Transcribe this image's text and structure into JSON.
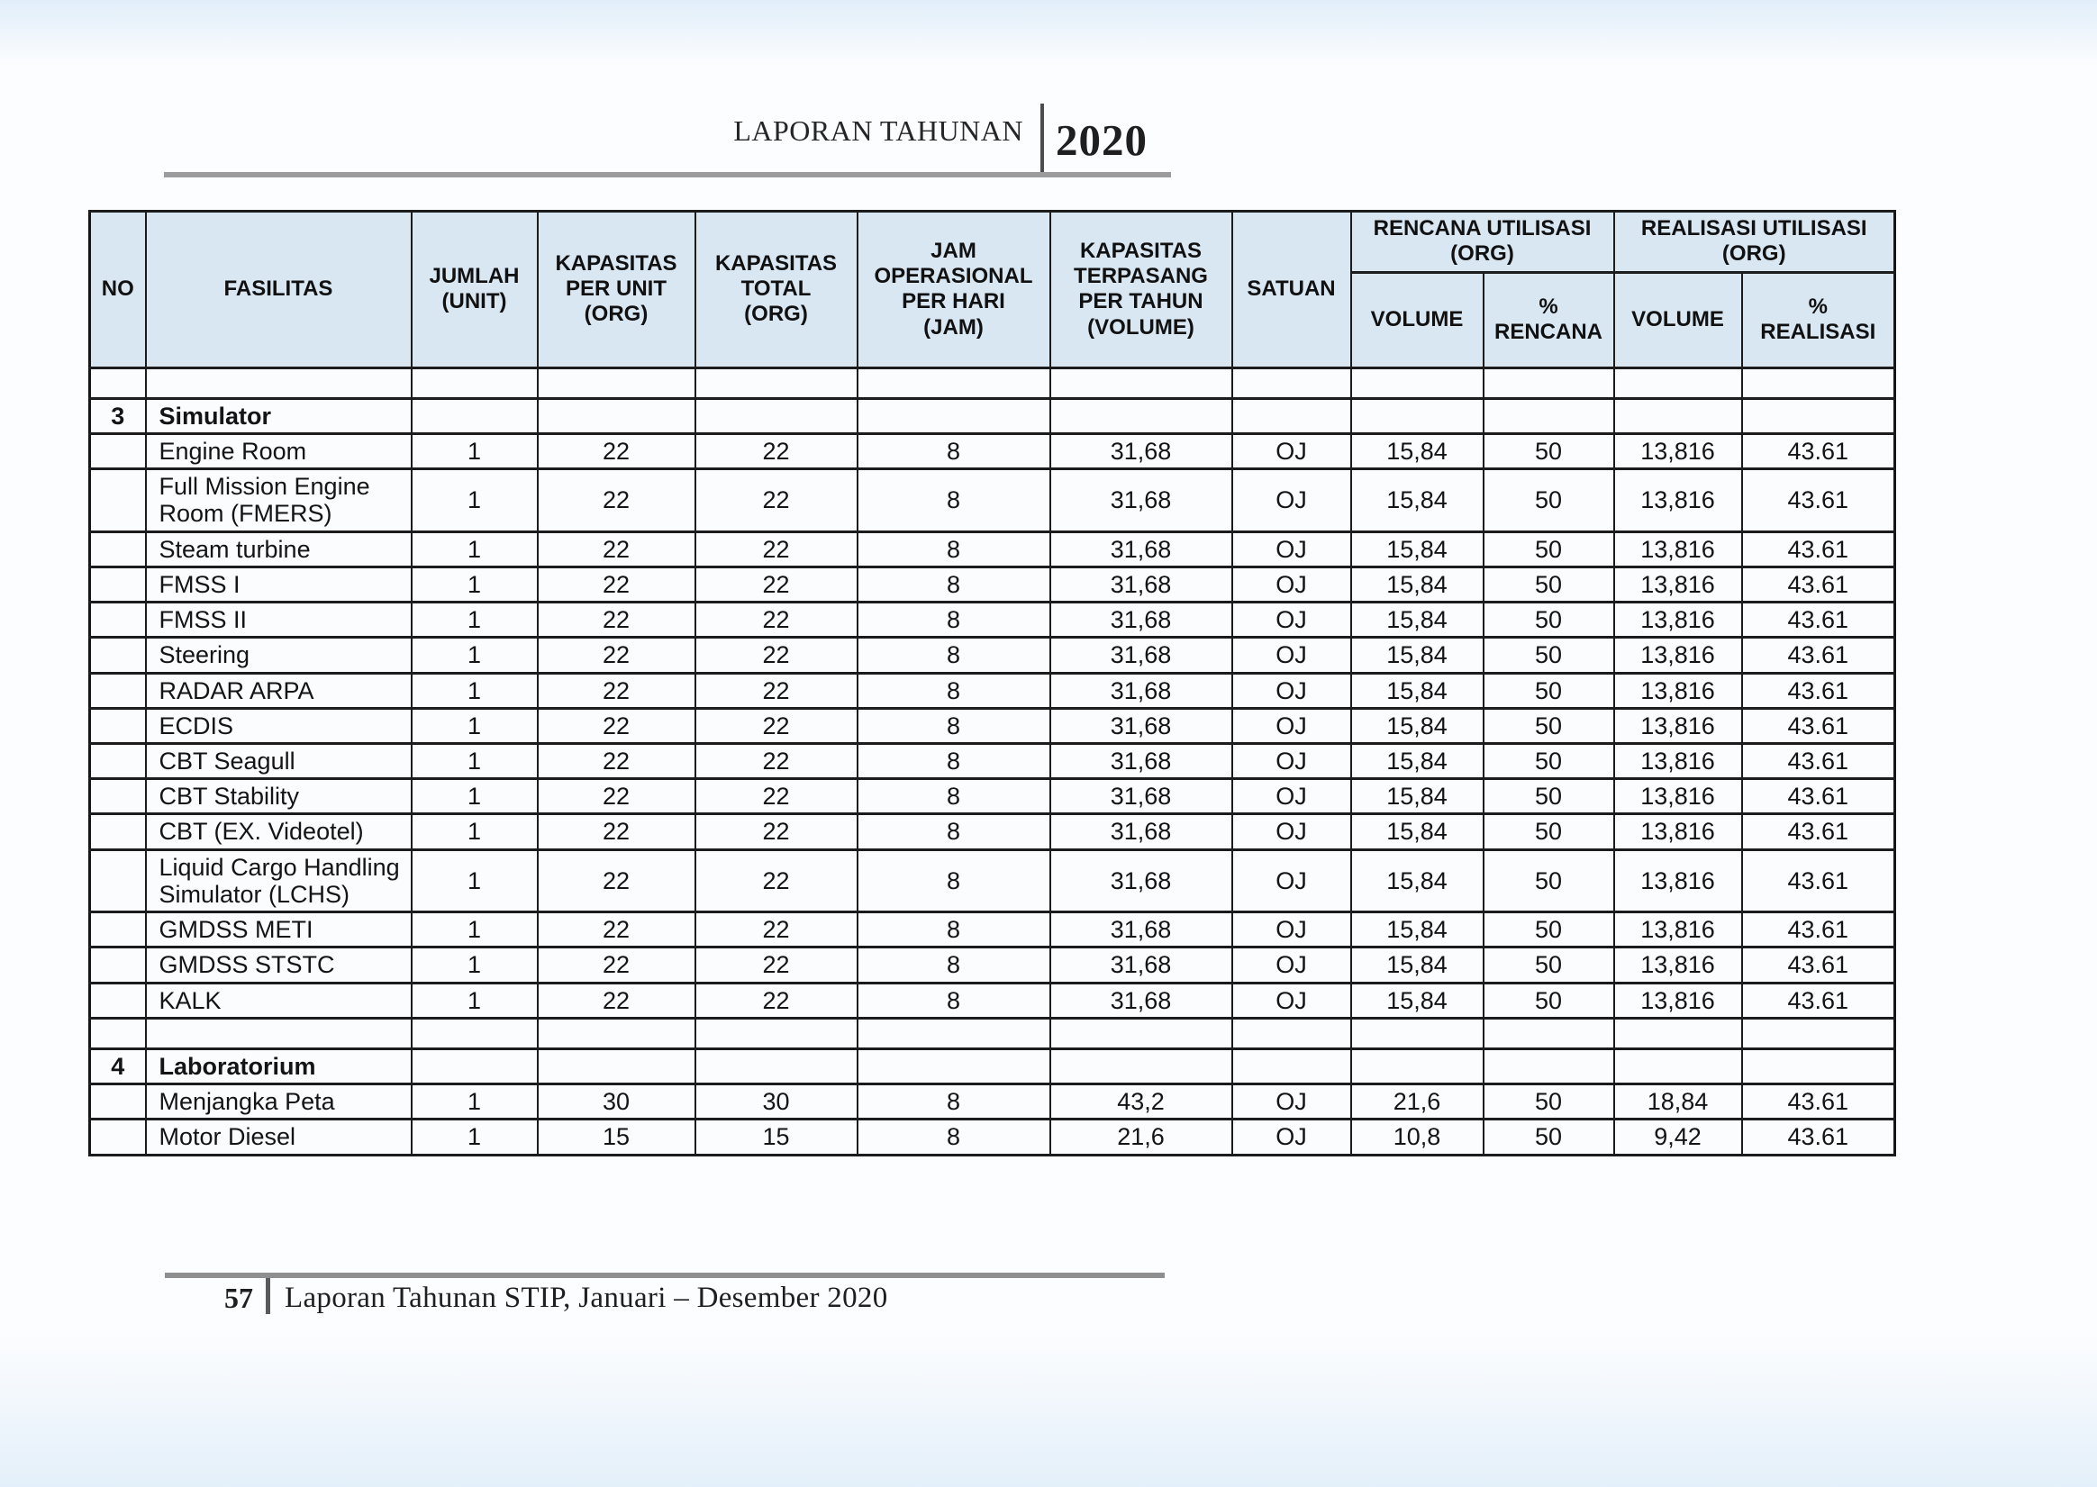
{
  "header": {
    "title": "LAPORAN TAHUNAN",
    "year": "2020"
  },
  "footer": {
    "page_number": "57",
    "text": "Laporan Tahunan STIP, Januari – Desember 2020"
  },
  "colors": {
    "table_header_bg": "#d9e7f3",
    "table_border": "#1c1c1c",
    "rule_gray": "#9c9c9c"
  },
  "table": {
    "headers": {
      "no": "NO",
      "fasilitas": "FASILITAS",
      "jumlah": "JUMLAH\n(UNIT)",
      "kapasitas_per_unit": "KAPASITAS\nPER UNIT\n(ORG)",
      "kapasitas_total": "KAPASITAS\nTOTAL\n(ORG)",
      "jam_operasional": "JAM\nOPERASIONAL\nPER HARI\n(JAM)",
      "kapasitas_terpasang": "KAPASITAS\nTERPASANG\nPER TAHUN\n(VOLUME)",
      "satuan": "SATUAN",
      "rencana_utilisasi": "RENCANA UTILISASI\n(ORG)",
      "realisasi_utilisasi": "REALISASI UTILISASI\n(ORG)",
      "volume_rencana": "VOLUME",
      "pct_rencana": "%\nRENCANA",
      "volume_realisasi": "VOLUME",
      "pct_realisasi": "%\nREALISASI"
    },
    "rows": [
      {
        "type": "empty"
      },
      {
        "type": "section",
        "no": "3",
        "fasilitas": "Simulator"
      },
      {
        "type": "data",
        "fasilitas": "Engine Room",
        "values": [
          "1",
          "22",
          "22",
          "8",
          "31,68",
          "OJ",
          "15,84",
          "50",
          "13,816",
          "43.61"
        ]
      },
      {
        "type": "data",
        "fasilitas": "Full Mission Engine Room (FMERS)",
        "values": [
          "1",
          "22",
          "22",
          "8",
          "31,68",
          "OJ",
          "15,84",
          "50",
          "13,816",
          "43.61"
        ]
      },
      {
        "type": "data",
        "fasilitas": "Steam turbine",
        "values": [
          "1",
          "22",
          "22",
          "8",
          "31,68",
          "OJ",
          "15,84",
          "50",
          "13,816",
          "43.61"
        ]
      },
      {
        "type": "data",
        "fasilitas": "FMSS I",
        "values": [
          "1",
          "22",
          "22",
          "8",
          "31,68",
          "OJ",
          "15,84",
          "50",
          "13,816",
          "43.61"
        ]
      },
      {
        "type": "data",
        "fasilitas": "FMSS II",
        "values": [
          "1",
          "22",
          "22",
          "8",
          "31,68",
          "OJ",
          "15,84",
          "50",
          "13,816",
          "43.61"
        ]
      },
      {
        "type": "data",
        "fasilitas": "Steering",
        "values": [
          "1",
          "22",
          "22",
          "8",
          "31,68",
          "OJ",
          "15,84",
          "50",
          "13,816",
          "43.61"
        ]
      },
      {
        "type": "data",
        "fasilitas": "RADAR ARPA",
        "values": [
          "1",
          "22",
          "22",
          "8",
          "31,68",
          "OJ",
          "15,84",
          "50",
          "13,816",
          "43.61"
        ]
      },
      {
        "type": "data",
        "fasilitas": "ECDIS",
        "values": [
          "1",
          "22",
          "22",
          "8",
          "31,68",
          "OJ",
          "15,84",
          "50",
          "13,816",
          "43.61"
        ]
      },
      {
        "type": "data",
        "fasilitas": "CBT Seagull",
        "values": [
          "1",
          "22",
          "22",
          "8",
          "31,68",
          "OJ",
          "15,84",
          "50",
          "13,816",
          "43.61"
        ]
      },
      {
        "type": "data",
        "fasilitas": "CBT Stability",
        "values": [
          "1",
          "22",
          "22",
          "8",
          "31,68",
          "OJ",
          "15,84",
          "50",
          "13,816",
          "43.61"
        ]
      },
      {
        "type": "data",
        "fasilitas": "CBT (EX. Videotel)",
        "values": [
          "1",
          "22",
          "22",
          "8",
          "31,68",
          "OJ",
          "15,84",
          "50",
          "13,816",
          "43.61"
        ]
      },
      {
        "type": "data",
        "fasilitas": "Liquid Cargo Handling Simulator (LCHS)",
        "values": [
          "1",
          "22",
          "22",
          "8",
          "31,68",
          "OJ",
          "15,84",
          "50",
          "13,816",
          "43.61"
        ]
      },
      {
        "type": "data",
        "fasilitas": "GMDSS METI",
        "values": [
          "1",
          "22",
          "22",
          "8",
          "31,68",
          "OJ",
          "15,84",
          "50",
          "13,816",
          "43.61"
        ]
      },
      {
        "type": "data",
        "fasilitas": "GMDSS STSTC",
        "values": [
          "1",
          "22",
          "22",
          "8",
          "31,68",
          "OJ",
          "15,84",
          "50",
          "13,816",
          "43.61"
        ]
      },
      {
        "type": "data",
        "fasilitas": "KALK",
        "values": [
          "1",
          "22",
          "22",
          "8",
          "31,68",
          "OJ",
          "15,84",
          "50",
          "13,816",
          "43.61"
        ]
      },
      {
        "type": "empty"
      },
      {
        "type": "section",
        "no": "4",
        "fasilitas": "Laboratorium"
      },
      {
        "type": "data",
        "fasilitas": "Menjangka Peta",
        "values": [
          "1",
          "30",
          "30",
          "8",
          "43,2",
          "OJ",
          "21,6",
          "50",
          "18,84",
          "43.61"
        ]
      },
      {
        "type": "data",
        "fasilitas": "Motor Diesel",
        "values": [
          "1",
          "15",
          "15",
          "8",
          "21,6",
          "OJ",
          "10,8",
          "50",
          "9,42",
          "43.61"
        ]
      }
    ]
  }
}
